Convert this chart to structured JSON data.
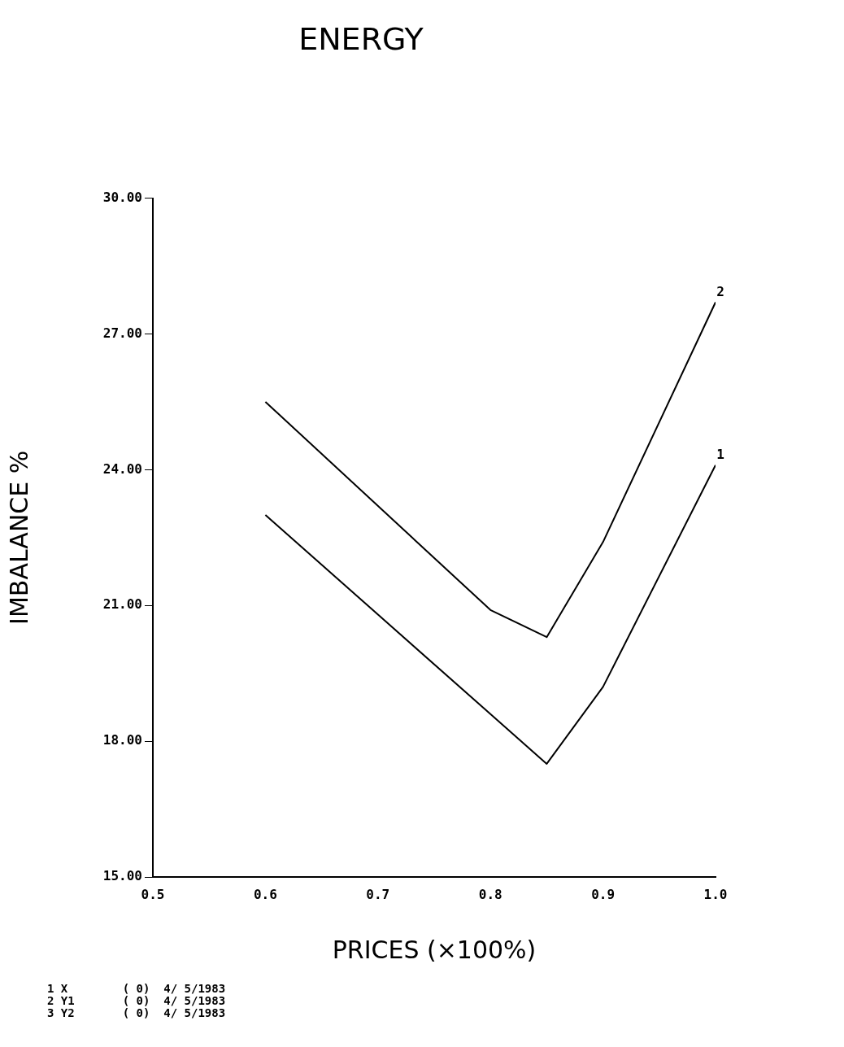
{
  "chart_data": {
    "type": "line",
    "title": "ENERGY",
    "xlabel": "PRICES (×100%)",
    "ylabel": "IMBALANCE %",
    "x": [
      0.6,
      0.8,
      0.85,
      0.9,
      1.0
    ],
    "series": [
      {
        "name": "1",
        "color": "#000000",
        "values": [
          23.0,
          18.6,
          17.5,
          19.2,
          24.1
        ]
      },
      {
        "name": "2",
        "color": "#000000",
        "values": [
          25.5,
          20.9,
          20.3,
          22.4,
          27.7
        ]
      }
    ],
    "xlim": [
      0.5,
      1.0
    ],
    "xticks": [
      {
        "value": 0.5,
        "label": "0.5"
      },
      {
        "value": 0.6,
        "label": "0.6"
      },
      {
        "value": 0.7,
        "label": "0.7"
      },
      {
        "value": 0.8,
        "label": "0.8"
      },
      {
        "value": 0.9,
        "label": "0.9"
      },
      {
        "value": 1.0,
        "label": "1.0"
      }
    ],
    "ylim": [
      15,
      30
    ],
    "yticks": [
      {
        "value": 15,
        "label": "15.00"
      },
      {
        "value": 18,
        "label": "18.00"
      },
      {
        "value": 21,
        "label": "21.00"
      },
      {
        "value": 24,
        "label": "24.00"
      },
      {
        "value": 27,
        "label": "27.00"
      },
      {
        "value": 30,
        "label": "30.00"
      }
    ],
    "grid": false,
    "legend": false,
    "marker": "none",
    "line_style": "solid",
    "annotations": [
      "1 X        ( 0)  4/ 5/1983",
      "2 Y1       ( 0)  4/ 5/1983",
      "3 Y2       ( 0)  4/ 5/1983"
    ]
  }
}
